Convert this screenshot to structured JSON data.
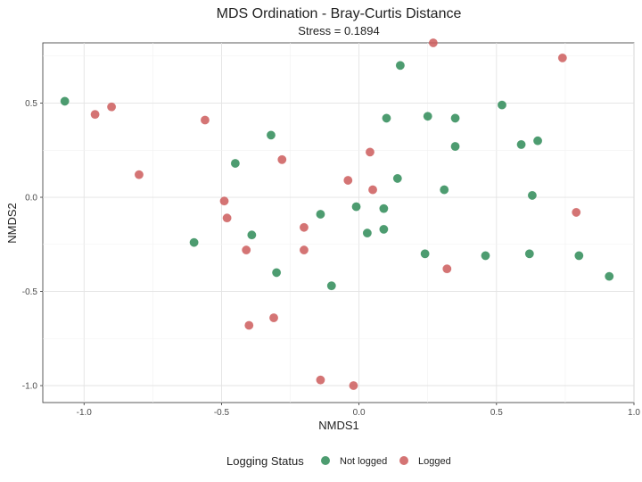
{
  "chart_data": {
    "type": "scatter",
    "title": "MDS Ordination - Bray-Curtis Distance",
    "subtitle": "Stress = 0.1894",
    "xlabel": "NMDS1",
    "ylabel": "NMDS2",
    "xlim": [
      -1.15,
      1.0
    ],
    "ylim": [
      -1.09,
      0.82
    ],
    "x_ticks": [
      -1.0,
      -0.5,
      0.0,
      0.5,
      1.0
    ],
    "x_tick_labels": [
      "-1.0",
      "-0.5",
      "0.0",
      "0.5",
      "1.0"
    ],
    "y_ticks": [
      -1.0,
      -0.5,
      0.0,
      0.5
    ],
    "y_tick_labels": [
      "-1.0",
      "-0.5",
      "0.0",
      "0.5"
    ],
    "grid": true,
    "legend": {
      "title": "Logging Status",
      "position": "bottom",
      "entries": [
        "Not logged",
        "Logged"
      ]
    },
    "series": [
      {
        "name": "Not logged",
        "color": "#2e8b57",
        "points": [
          {
            "x": -1.07,
            "y": 0.51
          },
          {
            "x": -0.6,
            "y": -0.24
          },
          {
            "x": -0.45,
            "y": 0.18
          },
          {
            "x": -0.39,
            "y": -0.2
          },
          {
            "x": -0.32,
            "y": 0.33
          },
          {
            "x": -0.3,
            "y": -0.4
          },
          {
            "x": -0.14,
            "y": -0.09
          },
          {
            "x": -0.1,
            "y": -0.47
          },
          {
            "x": -0.01,
            "y": -0.05
          },
          {
            "x": 0.03,
            "y": -0.19
          },
          {
            "x": 0.09,
            "y": -0.06
          },
          {
            "x": 0.09,
            "y": -0.17
          },
          {
            "x": 0.1,
            "y": 0.42
          },
          {
            "x": 0.14,
            "y": 0.1
          },
          {
            "x": 0.15,
            "y": 0.7
          },
          {
            "x": 0.24,
            "y": -0.3
          },
          {
            "x": 0.25,
            "y": 0.43
          },
          {
            "x": 0.31,
            "y": 0.04
          },
          {
            "x": 0.35,
            "y": 0.42
          },
          {
            "x": 0.35,
            "y": 0.27
          },
          {
            "x": 0.46,
            "y": -0.31
          },
          {
            "x": 0.52,
            "y": 0.49
          },
          {
            "x": 0.59,
            "y": 0.28
          },
          {
            "x": 0.62,
            "y": -0.3
          },
          {
            "x": 0.63,
            "y": 0.01
          },
          {
            "x": 0.65,
            "y": 0.3
          },
          {
            "x": 0.8,
            "y": -0.31
          },
          {
            "x": 0.91,
            "y": -0.42
          }
        ]
      },
      {
        "name": "Logged",
        "color": "#cd5c5c",
        "points": [
          {
            "x": -0.96,
            "y": 0.44
          },
          {
            "x": -0.9,
            "y": 0.48
          },
          {
            "x": -0.8,
            "y": 0.12
          },
          {
            "x": -0.56,
            "y": 0.41
          },
          {
            "x": -0.49,
            "y": -0.02
          },
          {
            "x": -0.48,
            "y": -0.11
          },
          {
            "x": -0.41,
            "y": -0.28
          },
          {
            "x": -0.4,
            "y": -0.68
          },
          {
            "x": -0.31,
            "y": -0.64
          },
          {
            "x": -0.28,
            "y": 0.2
          },
          {
            "x": -0.2,
            "y": -0.16
          },
          {
            "x": -0.2,
            "y": -0.28
          },
          {
            "x": -0.14,
            "y": -0.97
          },
          {
            "x": -0.04,
            "y": 0.09
          },
          {
            "x": -0.02,
            "y": -1.0
          },
          {
            "x": 0.04,
            "y": 0.24
          },
          {
            "x": 0.05,
            "y": 0.04
          },
          {
            "x": 0.27,
            "y": 0.82
          },
          {
            "x": 0.32,
            "y": -0.38
          },
          {
            "x": 0.74,
            "y": 0.74
          },
          {
            "x": 0.79,
            "y": -0.08
          }
        ]
      }
    ]
  }
}
